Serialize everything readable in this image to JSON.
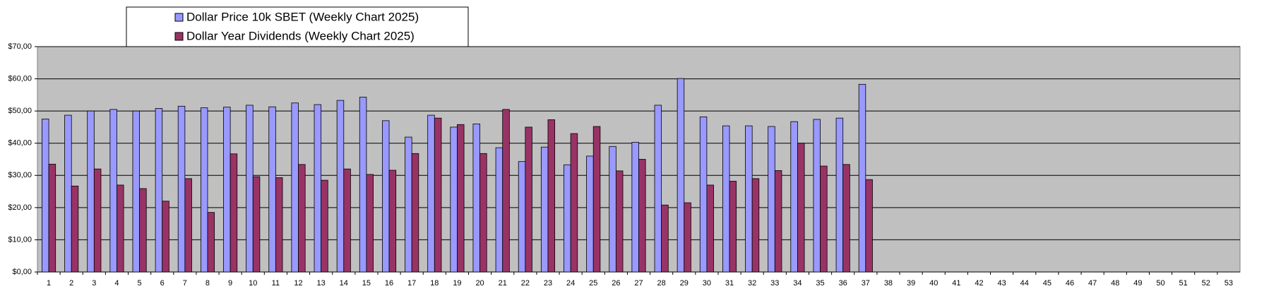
{
  "chart_data": {
    "type": "bar",
    "categories": [
      1,
      2,
      3,
      4,
      5,
      6,
      7,
      8,
      9,
      10,
      11,
      12,
      13,
      14,
      15,
      16,
      17,
      18,
      19,
      20,
      21,
      22,
      23,
      24,
      25,
      26,
      27,
      28,
      29,
      30,
      31,
      32,
      33,
      34,
      35,
      36,
      37,
      38,
      39,
      40,
      41,
      42,
      43,
      44,
      45,
      46,
      47,
      48,
      49,
      50,
      51,
      52,
      53
    ],
    "series": [
      {
        "name": "Dollar Price 10k SBET (Weekly Chart 2025)",
        "color": "#9999ff",
        "values": [
          47.5,
          48.7,
          50,
          50.5,
          50,
          50.8,
          51.5,
          51,
          51.2,
          51.8,
          51.3,
          52.5,
          52,
          53.3,
          54.3,
          47,
          41.9,
          48.7,
          45,
          46,
          38.6,
          34.3,
          38.8,
          33.3,
          36,
          39,
          40.3,
          51.8,
          60.1,
          48.2,
          45.4,
          45.4,
          45.2,
          46.7,
          47.4,
          47.8,
          58.3,
          null,
          null,
          null,
          null,
          null,
          null,
          null,
          null,
          null,
          null,
          null,
          null,
          null,
          null,
          null,
          null
        ]
      },
      {
        "name": "Dollar Year Dividends (Weekly Chart 2025)",
        "color": "#993366",
        "values": [
          33.5,
          26.7,
          32,
          27,
          25.9,
          22,
          29,
          18.5,
          36.7,
          29.6,
          29.3,
          33.4,
          28.5,
          32,
          30.3,
          31.6,
          36.8,
          47.8,
          45.8,
          36.8,
          50.5,
          45,
          47.3,
          43,
          45.2,
          31.4,
          35,
          20.8,
          21.5,
          27,
          28.2,
          29,
          31.5,
          40,
          32.9,
          33.4,
          28.7,
          null,
          null,
          null,
          null,
          null,
          null,
          null,
          null,
          null,
          null,
          null,
          null,
          null,
          null,
          null,
          null
        ]
      }
    ],
    "ylim": [
      0,
      70
    ],
    "yticks": [
      {
        "value": 0,
        "label": "$0,00"
      },
      {
        "value": 10,
        "label": "$10,00"
      },
      {
        "value": 20,
        "label": "$20,00"
      },
      {
        "value": 30,
        "label": "$30,00"
      },
      {
        "value": 40,
        "label": "$40,00"
      },
      {
        "value": 50,
        "label": "$50,00"
      },
      {
        "value": 60,
        "label": "$60,00"
      },
      {
        "value": 70,
        "label": "$70,00"
      }
    ],
    "grid": true
  }
}
